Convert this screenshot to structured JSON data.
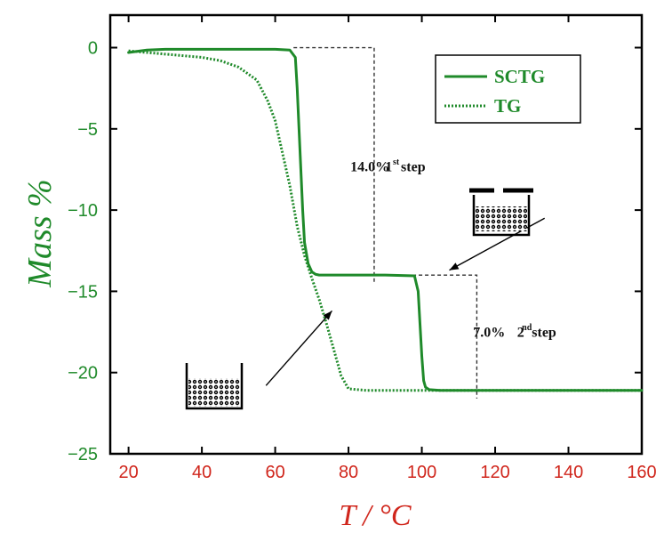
{
  "chart_data": {
    "type": "line",
    "xlabel": "T / °C",
    "ylabel": "Mass %",
    "xlim": [
      15,
      160
    ],
    "ylim": [
      -25,
      2
    ],
    "xticks": [
      20,
      40,
      60,
      80,
      100,
      120,
      140,
      160
    ],
    "yticks": [
      0,
      -5,
      -10,
      -15,
      -20,
      -25
    ],
    "legend_position": "top-right",
    "colors": {
      "series": "#1f8a2a",
      "ytick": "#1f8a2a",
      "xtick": "#d0261c",
      "guide": "#333333"
    },
    "series": [
      {
        "name": "SCTG",
        "style": "solid",
        "x": [
          20,
          25,
          30,
          40,
          50,
          60,
          64,
          65.5,
          66,
          66.5,
          67,
          67.5,
          68,
          69,
          70,
          71,
          72,
          80,
          90,
          98,
          99,
          99.5,
          100,
          100.5,
          101,
          102,
          105,
          120,
          140,
          160
        ],
        "y": [
          -0.3,
          -0.15,
          -0.1,
          -0.1,
          -0.1,
          -0.1,
          -0.15,
          -0.6,
          -2.5,
          -5,
          -7.5,
          -10,
          -12,
          -13.3,
          -13.8,
          -13.95,
          -14,
          -14,
          -14,
          -14.05,
          -15,
          -17,
          -19,
          -20.5,
          -20.9,
          -21.05,
          -21.1,
          -21.1,
          -21.1,
          -21.1
        ]
      },
      {
        "name": "TG",
        "style": "dotted",
        "x": [
          20,
          25,
          30,
          40,
          45,
          50,
          55,
          58,
          60,
          62,
          64,
          66,
          68,
          70,
          72,
          74,
          76,
          78,
          80,
          85,
          90,
          100,
          120,
          140,
          160
        ],
        "y": [
          -0.2,
          -0.3,
          -0.4,
          -0.6,
          -0.8,
          -1.2,
          -2,
          -3.3,
          -4.5,
          -6.5,
          -8.5,
          -11,
          -12.8,
          -14.2,
          -15.5,
          -17,
          -18.6,
          -20.2,
          -21,
          -21.1,
          -21.1,
          -21.1,
          -21.1,
          -21.1,
          -21.1
        ]
      }
    ],
    "guides": [
      {
        "points": [
          [
            65,
            0
          ],
          [
            87,
            0
          ],
          [
            87,
            -14.5
          ]
        ]
      },
      {
        "points": [
          [
            72,
            -14
          ],
          [
            115,
            -14
          ],
          [
            115,
            -21.6
          ]
        ]
      }
    ],
    "annotations": [
      {
        "text": "14.0%",
        "x": 80.5,
        "y": -7.6
      },
      {
        "text": "1",
        "x": 90,
        "y": -7.6
      },
      {
        "sup": "st",
        "x": 92.1,
        "y": -7.2
      },
      {
        "text": "step",
        "x": 94.3,
        "y": -7.6
      },
      {
        "text": "7.0%",
        "x": 114,
        "y": -17.8
      },
      {
        "text": "2",
        "x": 126,
        "y": -17.8
      },
      {
        "sup": "nd",
        "x": 127.3,
        "y": -17.4
      },
      {
        "text": "step",
        "x": 130,
        "y": -17.8
      }
    ],
    "arrows": [
      {
        "from": [
          133.5,
          -10.5
        ],
        "to": [
          107.5,
          -13.7
        ]
      },
      {
        "from": [
          57.5,
          -20.8
        ],
        "to": [
          75.5,
          -16.2
        ]
      }
    ]
  }
}
